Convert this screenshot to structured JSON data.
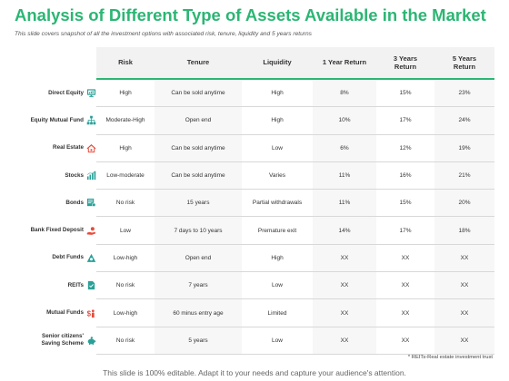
{
  "title": "Analysis of Different Type of Assets Available in the Market",
  "subtitle": "This slide covers snapshot of all the investment options with associated risk, tenure, liquidity and 5 years returns",
  "colors": {
    "accent": "#2bb673",
    "icon_teal": "#2aa198",
    "icon_red": "#e74c3c"
  },
  "table": {
    "headers": [
      "Risk",
      "Tenure",
      "Liquidity",
      "1 Year Return",
      "3 Years Return",
      "5 Years Return"
    ],
    "rows": [
      {
        "label": "Direct Equity",
        "icon": "monitor-icon",
        "cells": [
          "High",
          "Can be sold anytime",
          "High",
          "8%",
          "15%",
          "23%"
        ]
      },
      {
        "label": "Equity Mutual Fund",
        "icon": "network-icon",
        "cells": [
          "Moderate-High",
          "Open end",
          "High",
          "10%",
          "17%",
          "24%"
        ]
      },
      {
        "label": "Real Estate",
        "icon": "house-icon",
        "cells": [
          "High",
          "Can be sold anytime",
          "Low",
          "6%",
          "12%",
          "19%"
        ]
      },
      {
        "label": "Stocks",
        "icon": "bar-chart-icon",
        "cells": [
          "Low-moderate",
          "Can be sold anytime",
          "Varies",
          "11%",
          "16%",
          "21%"
        ]
      },
      {
        "label": "Bonds",
        "icon": "certificate-icon",
        "cells": [
          "No risk",
          "15 years",
          "Partial withdrawals",
          "11%",
          "15%",
          "20%"
        ]
      },
      {
        "label": "Bank Fixed Deposit",
        "icon": "hand-coin-icon",
        "cells": [
          "Low",
          "7 days to 10 years",
          "Premature exit",
          "14%",
          "17%",
          "18%"
        ]
      },
      {
        "label": "Debt Funds",
        "icon": "triangle-icon",
        "cells": [
          "Low-high",
          "Open end",
          "High",
          "XX",
          "XX",
          "XX"
        ]
      },
      {
        "label": "REITs",
        "icon": "document-check-icon",
        "cells": [
          "No risk",
          "7 years",
          "Low",
          "XX",
          "XX",
          "XX"
        ]
      },
      {
        "label": "Mutual Funds",
        "icon": "dollar-person-icon",
        "cells": [
          "Low-high",
          "60 minus entry age",
          "Limited",
          "XX",
          "XX",
          "XX"
        ]
      },
      {
        "label": "Senior citizens' Saving Scheme",
        "icon": "piggy-bank-icon",
        "cells": [
          "No risk",
          "5 years",
          "Low",
          "XX",
          "XX",
          "XX"
        ]
      }
    ]
  },
  "footnote": "* REITs-Real  estate investment trust",
  "editable_note": "This slide is 100% editable. Adapt it to your needs and capture your audience's attention."
}
